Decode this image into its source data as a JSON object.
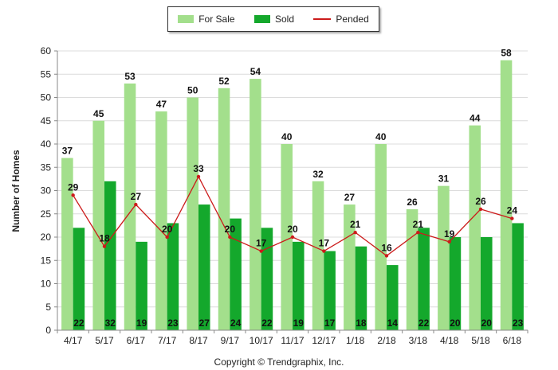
{
  "legend": {
    "for_sale": "For Sale",
    "sold": "Sold",
    "pended": "Pended"
  },
  "copyright": "Copyright © Trendgraphix, Inc.",
  "colors": {
    "for_sale": "#a3df8c",
    "sold": "#14a82c",
    "pended": "#cc1b1b",
    "grid": "#dcdcdc"
  },
  "chart_data": {
    "type": "bar",
    "ylabel": "Number of Homes",
    "xlabel": "",
    "ylim": [
      0,
      60
    ],
    "yticks": [
      0,
      5,
      10,
      15,
      20,
      25,
      30,
      35,
      40,
      45,
      50,
      55,
      60
    ],
    "grid": true,
    "legend_position": "top-center",
    "categories": [
      "4/17",
      "5/17",
      "6/17",
      "7/17",
      "8/17",
      "9/17",
      "10/17",
      "11/17",
      "12/17",
      "1/18",
      "2/18",
      "3/18",
      "4/18",
      "5/18",
      "6/18"
    ],
    "series": [
      {
        "name": "For Sale",
        "type": "bar",
        "values": [
          37,
          45,
          53,
          47,
          50,
          52,
          54,
          40,
          32,
          27,
          40,
          26,
          31,
          44,
          58
        ]
      },
      {
        "name": "Sold",
        "type": "bar",
        "values": [
          22,
          32,
          19,
          23,
          27,
          24,
          22,
          19,
          17,
          18,
          14,
          22,
          20,
          20,
          23
        ]
      },
      {
        "name": "Pended",
        "type": "line",
        "values": [
          29,
          18,
          27,
          20,
          33,
          20,
          17,
          20,
          17,
          21,
          16,
          21,
          19,
          26,
          24
        ]
      }
    ]
  }
}
